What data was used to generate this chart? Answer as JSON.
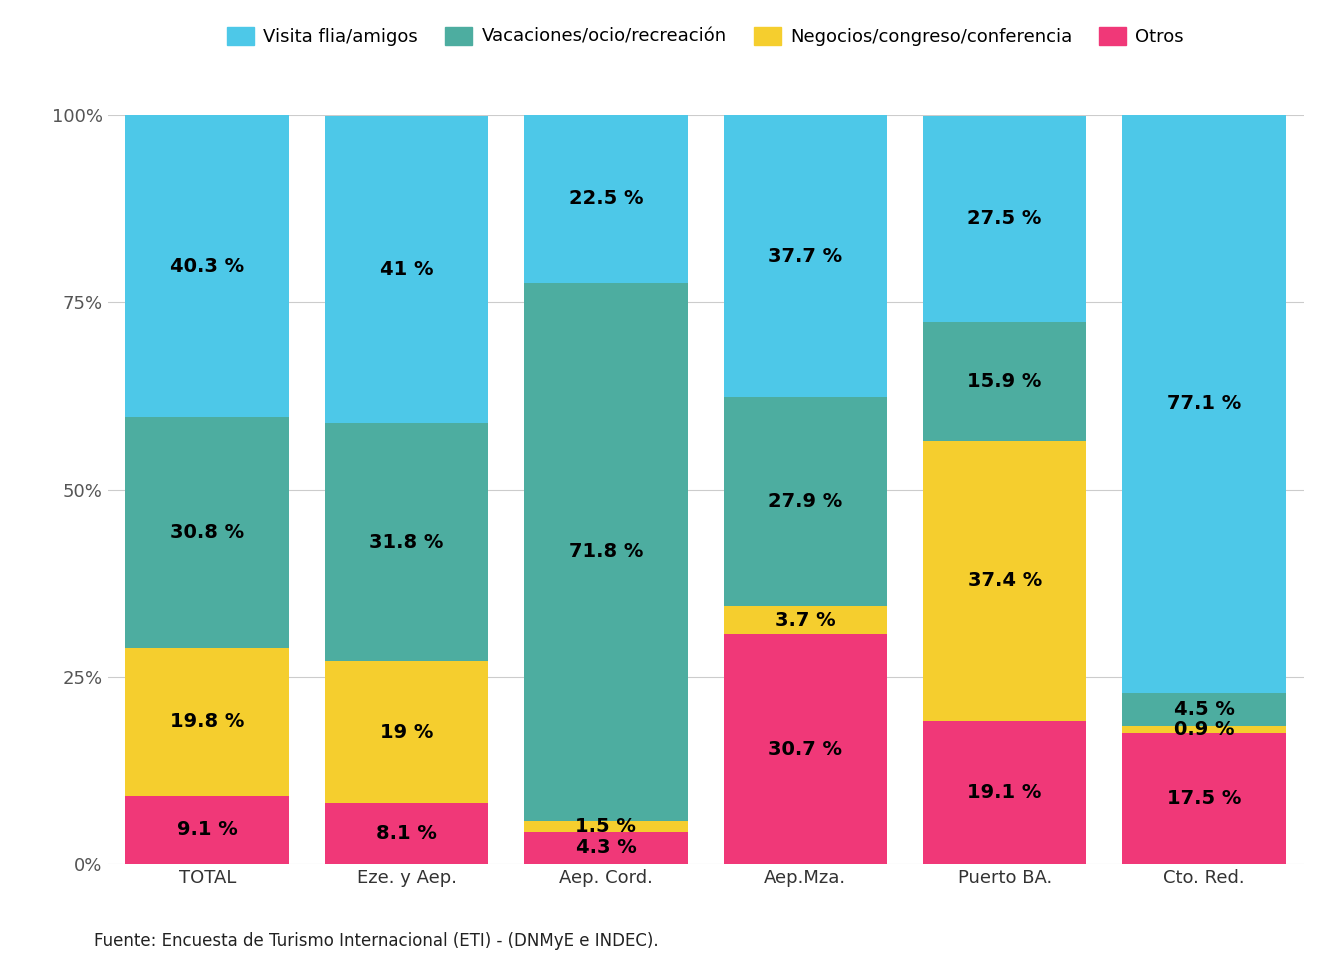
{
  "categories": [
    "TOTAL",
    "Eze. y Aep.",
    "Aep. Cord.",
    "Aep.Mza.",
    "Puerto BA.",
    "Cto. Red."
  ],
  "series": {
    "Otros": [
      9.1,
      8.1,
      4.3,
      30.7,
      19.1,
      17.5
    ],
    "Negocios/congreso/conferencia": [
      19.8,
      19.0,
      1.5,
      3.7,
      37.4,
      0.9
    ],
    "Vacaciones/ocio/recreación": [
      30.8,
      31.8,
      71.8,
      27.9,
      15.9,
      4.5
    ],
    "Visita flia/amigos": [
      40.3,
      41.0,
      22.5,
      37.7,
      27.5,
      77.1
    ]
  },
  "colors": {
    "Visita flia/amigos": "#4DC8E8",
    "Vacaciones/ocio/recreación": "#4DADA0",
    "Negocios/congreso/conferencia": "#F5CE2E",
    "Otros": "#F03878"
  },
  "order": [
    "Otros",
    "Negocios/congreso/conferencia",
    "Vacaciones/ocio/recreación",
    "Visita flia/amigos"
  ],
  "legend_order": [
    "Visita flia/amigos",
    "Vacaciones/ocio/recreación",
    "Negocios/congreso/conferencia",
    "Otros"
  ],
  "ylabel_ticks": [
    "0%",
    "25%",
    "50%",
    "75%",
    "100%"
  ],
  "ytick_vals": [
    0,
    25,
    50,
    75,
    100
  ],
  "source": "Fuente: Encuesta de Turismo Internacional (ETI) - (DNMyE e INDEC).",
  "background_color": "#FFFFFF",
  "bar_width": 0.82,
  "label_fontsize": 14,
  "tick_fontsize": 13,
  "legend_fontsize": 13,
  "source_fontsize": 12
}
